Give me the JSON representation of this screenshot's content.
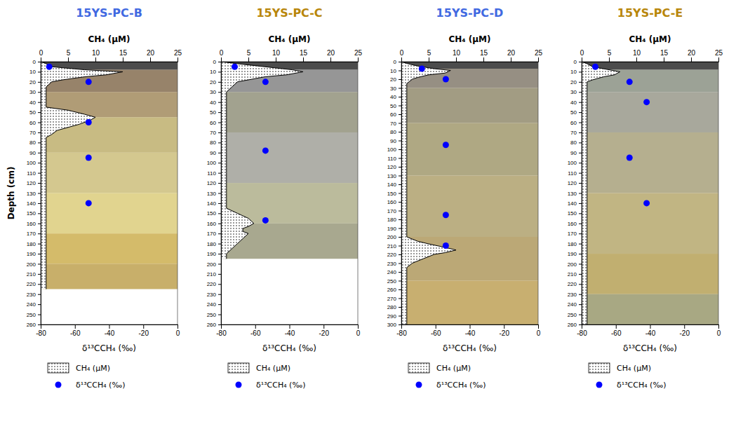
{
  "chart_data": [
    {
      "type": "scatter",
      "title": "15YS-PC-B",
      "color": "#4169e1",
      "x_label": "δ¹³CCH₄ (‰)",
      "x2_label": "CH₄ (μM)",
      "y_label": "Depth (cm)",
      "xlim": [
        -80,
        0
      ],
      "xticks": [
        -80,
        -60,
        -40,
        -20,
        0
      ],
      "x2lim": [
        0,
        25
      ],
      "x2ticks": [
        0,
        5,
        10,
        15,
        20,
        25
      ],
      "ylim": [
        260,
        0
      ],
      "yticks": [
        0,
        10,
        20,
        30,
        40,
        50,
        60,
        70,
        80,
        90,
        100,
        110,
        120,
        130,
        140,
        150,
        160,
        170,
        180,
        190,
        200,
        210,
        220,
        230,
        240,
        250,
        260
      ],
      "legend": "bottom",
      "bands": [
        {
          "from": 0,
          "to": 8,
          "color": "#1a1a1a"
        },
        {
          "from": 8,
          "to": 30,
          "color": "#7a6040"
        },
        {
          "from": 30,
          "to": 55,
          "color": "#9a8050"
        },
        {
          "from": 55,
          "to": 90,
          "color": "#b8a860"
        },
        {
          "from": 90,
          "to": 130,
          "color": "#c8b870"
        },
        {
          "from": 130,
          "to": 170,
          "color": "#d8c870"
        },
        {
          "from": 170,
          "to": 200,
          "color": "#c8a840"
        },
        {
          "from": 200,
          "to": 225,
          "color": "#b89840"
        }
      ],
      "series": [
        {
          "name": "CH₄ (μM)",
          "type": "area",
          "axis": "x2",
          "color": "black",
          "y": [
            0,
            2,
            5,
            8,
            10,
            13,
            15,
            18,
            20,
            25,
            30,
            35,
            40,
            45,
            48,
            52,
            55,
            58,
            62,
            65,
            68,
            72,
            75,
            80,
            85,
            90,
            95,
            100,
            105,
            110,
            115,
            120,
            125,
            130,
            135,
            140,
            145,
            150,
            155,
            160,
            165,
            170,
            175,
            180,
            185,
            190,
            195,
            200,
            205,
            210,
            215,
            220,
            225
          ],
          "x": [
            0,
            1,
            2,
            8,
            15,
            12,
            8,
            4,
            2,
            1,
            1,
            1,
            1,
            1,
            5,
            8,
            10,
            9,
            7,
            5,
            3,
            2,
            1,
            1,
            1,
            1,
            1,
            1,
            1,
            1,
            1,
            1,
            1,
            1,
            1,
            1,
            1,
            1,
            1,
            1,
            1,
            1,
            1,
            1,
            1,
            1,
            1,
            1,
            1,
            1,
            1,
            1,
            1
          ]
        },
        {
          "name": "δ¹³CCH₄ (‰)",
          "type": "scatter",
          "color": "blue",
          "y": [
            5,
            20,
            60,
            95,
            140
          ],
          "x": [
            -75,
            -52,
            -52,
            -52,
            -52
          ]
        }
      ]
    },
    {
      "type": "scatter",
      "title": "15YS-PC-C",
      "color": "#b8860b",
      "x_label": "δ¹³CCH₄ (‰)",
      "x2_label": "CH₄ (μM)",
      "xlim": [
        -80,
        0
      ],
      "xticks": [
        -80,
        -60,
        -40,
        -20,
        0
      ],
      "x2lim": [
        0,
        25
      ],
      "x2ticks": [
        0,
        5,
        10,
        15,
        20,
        25
      ],
      "ylim": [
        260,
        0
      ],
      "yticks": [
        0,
        10,
        20,
        30,
        40,
        50,
        60,
        70,
        80,
        90,
        100,
        110,
        120,
        130,
        140,
        150,
        160,
        170,
        180,
        190,
        200,
        210,
        220,
        230,
        240,
        250,
        260
      ],
      "legend": "bottom",
      "bands": [
        {
          "from": 0,
          "to": 8,
          "color": "#1a1a1a"
        },
        {
          "from": 8,
          "to": 30,
          "color": "#787878"
        },
        {
          "from": 30,
          "to": 70,
          "color": "#888870"
        },
        {
          "from": 70,
          "to": 120,
          "color": "#989890"
        },
        {
          "from": 120,
          "to": 160,
          "color": "#a8a880"
        },
        {
          "from": 160,
          "to": 195,
          "color": "#909070"
        }
      ],
      "series": [
        {
          "name": "CH₄ (μM)",
          "type": "area",
          "axis": "x2",
          "color": "black",
          "y": [
            0,
            2,
            5,
            8,
            10,
            13,
            15,
            18,
            20,
            25,
            30,
            35,
            40,
            45,
            50,
            55,
            60,
            65,
            70,
            75,
            80,
            85,
            90,
            95,
            100,
            105,
            110,
            115,
            120,
            125,
            130,
            135,
            140,
            145,
            150,
            155,
            160,
            163,
            165,
            168,
            170,
            175,
            180,
            185,
            190,
            193,
            195
          ],
          "x": [
            0,
            3,
            8,
            13,
            15,
            12,
            8,
            5,
            3,
            2,
            1,
            1,
            1,
            1,
            1,
            1,
            1,
            1,
            1,
            1,
            1,
            1,
            1,
            1,
            1,
            1,
            1,
            1,
            1,
            1,
            1,
            1,
            1,
            1,
            3,
            5,
            6,
            5,
            4,
            4,
            5,
            4,
            3,
            2,
            1,
            1,
            1
          ]
        },
        {
          "name": "δ¹³CCH₄ (‰)",
          "type": "scatter",
          "color": "blue",
          "y": [
            5,
            20,
            88,
            157
          ],
          "x": [
            -72,
            -54,
            -54,
            -54
          ]
        }
      ]
    },
    {
      "type": "scatter",
      "title": "15YS-PC-D",
      "color": "#4169e1",
      "x_label": "δ¹³CCH₄ (‰)",
      "x2_label": "CH₄ (μM)",
      "xlim": [
        -80,
        0
      ],
      "xticks": [
        -80,
        -60,
        -40,
        -20,
        0
      ],
      "x2lim": [
        0,
        25
      ],
      "x2ticks": [
        0,
        5,
        10,
        15,
        20,
        25
      ],
      "ylim": [
        300,
        0
      ],
      "yticks": [
        0,
        10,
        20,
        30,
        40,
        50,
        60,
        70,
        80,
        90,
        100,
        110,
        120,
        130,
        140,
        150,
        160,
        170,
        180,
        190,
        200,
        210,
        220,
        230,
        240,
        250,
        260,
        270,
        280,
        290,
        300
      ],
      "legend": "bottom",
      "bands": [
        {
          "from": 0,
          "to": 8,
          "color": "#1a1a1a"
        },
        {
          "from": 8,
          "to": 30,
          "color": "#787060"
        },
        {
          "from": 30,
          "to": 70,
          "color": "#888060"
        },
        {
          "from": 70,
          "to": 130,
          "color": "#989060"
        },
        {
          "from": 130,
          "to": 200,
          "color": "#a89860"
        },
        {
          "from": 200,
          "to": 250,
          "color": "#a89050"
        },
        {
          "from": 250,
          "to": 300,
          "color": "#b89848"
        }
      ],
      "series": [
        {
          "name": "CH₄ (μM)",
          "type": "area",
          "axis": "x2",
          "color": "black",
          "y": [
            0,
            2,
            5,
            8,
            10,
            13,
            15,
            18,
            20,
            25,
            30,
            35,
            40,
            45,
            50,
            55,
            60,
            65,
            70,
            75,
            80,
            85,
            90,
            95,
            100,
            105,
            110,
            115,
            120,
            125,
            130,
            135,
            140,
            145,
            150,
            155,
            160,
            165,
            170,
            175,
            180,
            185,
            190,
            195,
            200,
            205,
            208,
            212,
            215,
            218,
            220,
            225,
            230,
            235,
            240,
            245,
            250,
            255,
            260,
            265,
            270,
            275,
            280,
            285,
            290,
            295,
            300
          ],
          "x": [
            0,
            1,
            3,
            6,
            9,
            8,
            5,
            3,
            2,
            1,
            1,
            1,
            1,
            1,
            1,
            1,
            1,
            1,
            1,
            1,
            1,
            1,
            1,
            1,
            1,
            1,
            1,
            1,
            1,
            1,
            1,
            1,
            1,
            1,
            1,
            1,
            1,
            1,
            1,
            1,
            1,
            1,
            1,
            1,
            1,
            3,
            5,
            8,
            10,
            8,
            6,
            4,
            2,
            1,
            1,
            1,
            1,
            1,
            1,
            1,
            1,
            1,
            1,
            1,
            1,
            1,
            1
          ]
        },
        {
          "name": "δ¹³CCH₄ (‰)",
          "type": "scatter",
          "color": "blue",
          "y": [
            8,
            20,
            95,
            175,
            210
          ],
          "x": [
            -68,
            -54,
            -54,
            -54,
            -54
          ]
        }
      ]
    },
    {
      "type": "scatter",
      "title": "15YS-PC-E",
      "color": "#b8860b",
      "x_label": "δ¹³CCH₄ (‰)",
      "x2_label": "CH₄ (μM)",
      "xlim": [
        -80,
        0
      ],
      "xticks": [
        -80,
        -60,
        -40,
        -20,
        0
      ],
      "x2lim": [
        0,
        25
      ],
      "x2ticks": [
        0,
        5,
        10,
        15,
        20,
        25
      ],
      "ylim": [
        260,
        0
      ],
      "yticks": [
        0,
        10,
        20,
        30,
        40,
        50,
        60,
        70,
        80,
        90,
        100,
        110,
        120,
        130,
        140,
        150,
        160,
        170,
        180,
        190,
        200,
        210,
        220,
        230,
        240,
        250,
        260
      ],
      "legend": "bottom",
      "bands": [
        {
          "from": 0,
          "to": 8,
          "color": "#1a1a1a"
        },
        {
          "from": 8,
          "to": 30,
          "color": "#808878"
        },
        {
          "from": 30,
          "to": 70,
          "color": "#909080"
        },
        {
          "from": 70,
          "to": 130,
          "color": "#a09870"
        },
        {
          "from": 130,
          "to": 190,
          "color": "#b0a060"
        },
        {
          "from": 190,
          "to": 230,
          "color": "#b09848"
        },
        {
          "from": 230,
          "to": 260,
          "color": "#909060"
        }
      ],
      "series": [
        {
          "name": "CH₄ (μM)",
          "type": "area",
          "axis": "x2",
          "color": "black",
          "y": [
            0,
            2,
            5,
            8,
            10,
            13,
            15,
            18,
            20,
            25,
            30,
            35,
            40,
            45,
            50,
            55,
            60,
            65,
            70,
            75,
            80,
            85,
            90,
            95,
            100,
            105,
            110,
            115,
            120,
            125,
            130,
            135,
            140,
            145,
            150,
            155,
            160,
            165,
            170,
            175,
            180,
            185,
            190,
            195,
            200,
            205,
            210,
            215,
            220,
            225,
            230,
            235,
            240,
            245,
            250,
            255,
            260
          ],
          "x": [
            0,
            1,
            2,
            5,
            7,
            6,
            4,
            2,
            1,
            1,
            1,
            1,
            1,
            1,
            1,
            1,
            1,
            1,
            1,
            1,
            1,
            1,
            1,
            1,
            1,
            1,
            1,
            1,
            1,
            1,
            1,
            1,
            1,
            1,
            1,
            1,
            1,
            1,
            1,
            1,
            1,
            1,
            1,
            1,
            1,
            1,
            1,
            1,
            1,
            1,
            1,
            1,
            1,
            1,
            1,
            1,
            1
          ]
        },
        {
          "name": "δ¹³CCH₄ (‰)",
          "type": "scatter",
          "color": "blue",
          "y": [
            5,
            20,
            40,
            95,
            140
          ],
          "x": [
            -72,
            -52,
            -42,
            -52,
            -42
          ]
        }
      ]
    }
  ]
}
